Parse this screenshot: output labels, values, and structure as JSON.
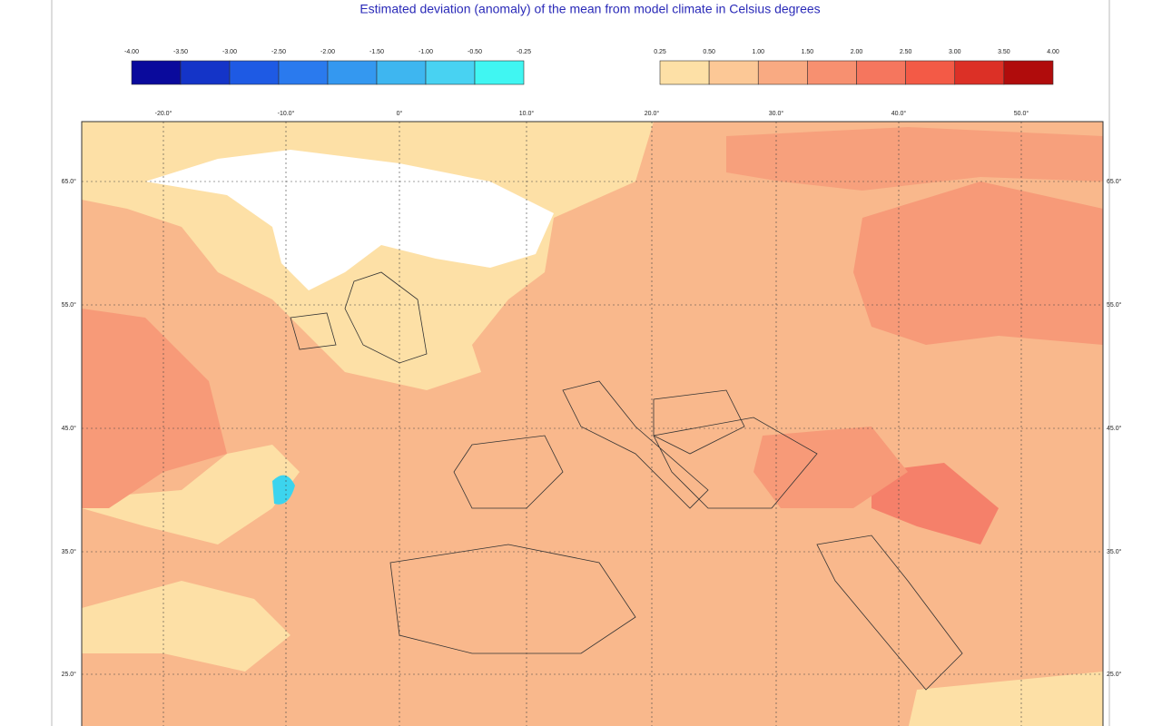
{
  "title": "Estimated deviation (anomaly) of the mean from model climate in Celsius degrees",
  "legend": {
    "negative": {
      "labels": [
        "-4.00",
        "-3.50",
        "-3.00",
        "-2.50",
        "-2.00",
        "-1.50",
        "-1.00",
        "-0.50",
        "-0.25"
      ],
      "colors": [
        "#0a0a9c",
        "#1434c8",
        "#1e5ae4",
        "#2a7aee",
        "#3498f0",
        "#3eb6f0",
        "#48d2f2",
        "#40f6f2"
      ]
    },
    "positive": {
      "labels": [
        "0.25",
        "0.50",
        "1.00",
        "1.50",
        "2.00",
        "2.50",
        "3.00",
        "3.50",
        "4.00"
      ],
      "colors": [
        "#fde0a6",
        "#fcc896",
        "#f9aa82",
        "#f79070",
        "#f5765e",
        "#f35a46",
        "#dc3026",
        "#b00c0c"
      ]
    }
  },
  "map": {
    "lon_labels": [
      "-20.0°",
      "-10.0°",
      "0°",
      "10.0°",
      "20.0°",
      "30.0°",
      "40.0°",
      "50.0°"
    ],
    "lat_labels": [
      "65.0°",
      "55.0°",
      "45.0°",
      "35.0°",
      "25.0°"
    ]
  }
}
